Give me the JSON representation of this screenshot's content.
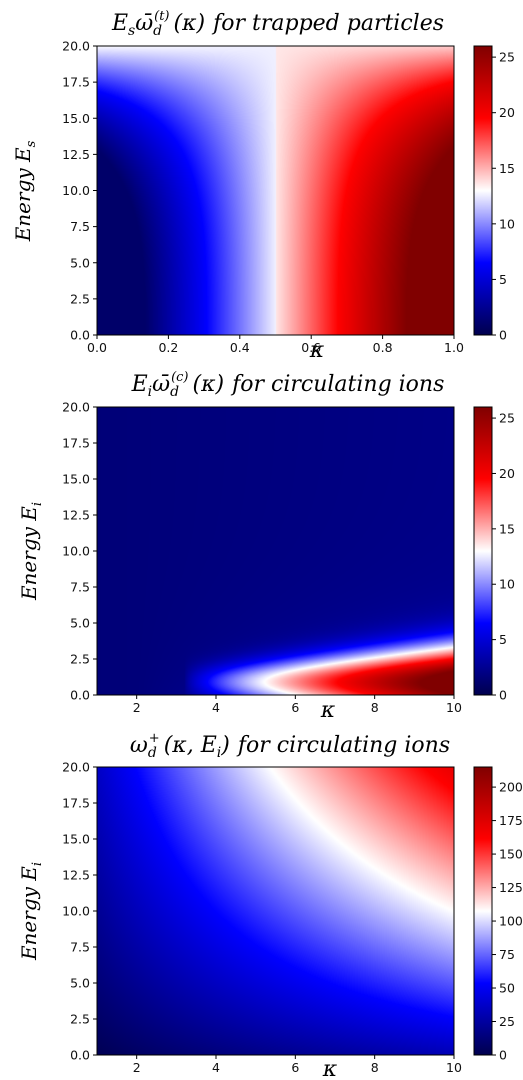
{
  "chart_data": [
    {
      "type": "heatmap",
      "title": "E_s ω̄_d^(t)(κ) for trapped particles",
      "xlabel": "κ",
      "ylabel": "Energy E_s",
      "xlim": [
        0.0,
        1.0
      ],
      "ylim": [
        0.0,
        20.0
      ],
      "xticks": [
        "0.0",
        "0.2",
        "0.4",
        "0.6",
        "0.8",
        "1.0"
      ],
      "yticks": [
        "0.0",
        "2.5",
        "5.0",
        "7.5",
        "10.0",
        "12.5",
        "15.0",
        "17.5",
        "20.0"
      ],
      "colorbar": {
        "min": 0,
        "max": 26,
        "ticks": [
          "0",
          "5",
          "10",
          "15",
          "20",
          "25"
        ],
        "colormap": "seismic"
      },
      "grid": false
    },
    {
      "type": "heatmap",
      "title": "E_i ω̄_d^(c)(κ) for circulating ions",
      "xlabel": "κ",
      "ylabel": "Energy E_i",
      "xlim": [
        1,
        10
      ],
      "ylim": [
        0.0,
        20.0
      ],
      "xticks": [
        "2",
        "4",
        "6",
        "8",
        "10"
      ],
      "yticks": [
        "0.0",
        "2.5",
        "5.0",
        "7.5",
        "10.0",
        "12.5",
        "15.0",
        "17.5",
        "20.0"
      ],
      "colorbar": {
        "min": 0,
        "max": 26,
        "ticks": [
          "0",
          "5",
          "10",
          "15",
          "20",
          "25"
        ],
        "colormap": "seismic"
      },
      "grid": false
    },
    {
      "type": "heatmap",
      "title": "ω_d^+(κ, E_i) for circulating ions",
      "xlabel": "κ",
      "ylabel": "Energy E_i",
      "xlim": [
        1,
        10
      ],
      "ylim": [
        0.0,
        20.0
      ],
      "xticks": [
        "2",
        "4",
        "6",
        "8",
        "10"
      ],
      "yticks": [
        "0.0",
        "2.5",
        "5.0",
        "7.5",
        "10.0",
        "12.5",
        "15.0",
        "17.5",
        "20.0"
      ],
      "colorbar": {
        "min": 0,
        "max": 215,
        "ticks": [
          "0",
          "25",
          "50",
          "75",
          "100",
          "125",
          "150",
          "175",
          "200"
        ],
        "colormap": "seismic"
      },
      "grid": false
    }
  ],
  "titles": [
    {
      "base": "E",
      "sub": "s",
      "sym": "ω̄",
      "sym_sub": "d",
      "sym_sup": "(t)",
      "arg": "(κ)",
      "tail": "for trapped particles"
    },
    {
      "base": "E",
      "sub": "i",
      "sym": "ω̄",
      "sym_sub": "d",
      "sym_sup": "(c)",
      "arg": "(κ)",
      "tail": "for circulating ions"
    },
    {
      "base": "",
      "sub": "",
      "sym": "ω",
      "sym_sub": "d",
      "sym_sup": "+",
      "arg": "(κ, E",
      "arg_sub": "i",
      "arg_close": ")",
      "tail": "for circulating ions"
    }
  ],
  "ylabels": [
    {
      "text": "Energy E",
      "sub": "s"
    },
    {
      "text": "Energy E",
      "sub": "i"
    },
    {
      "text": "Energy E",
      "sub": "i"
    }
  ],
  "xlabel_symbol": "κ"
}
